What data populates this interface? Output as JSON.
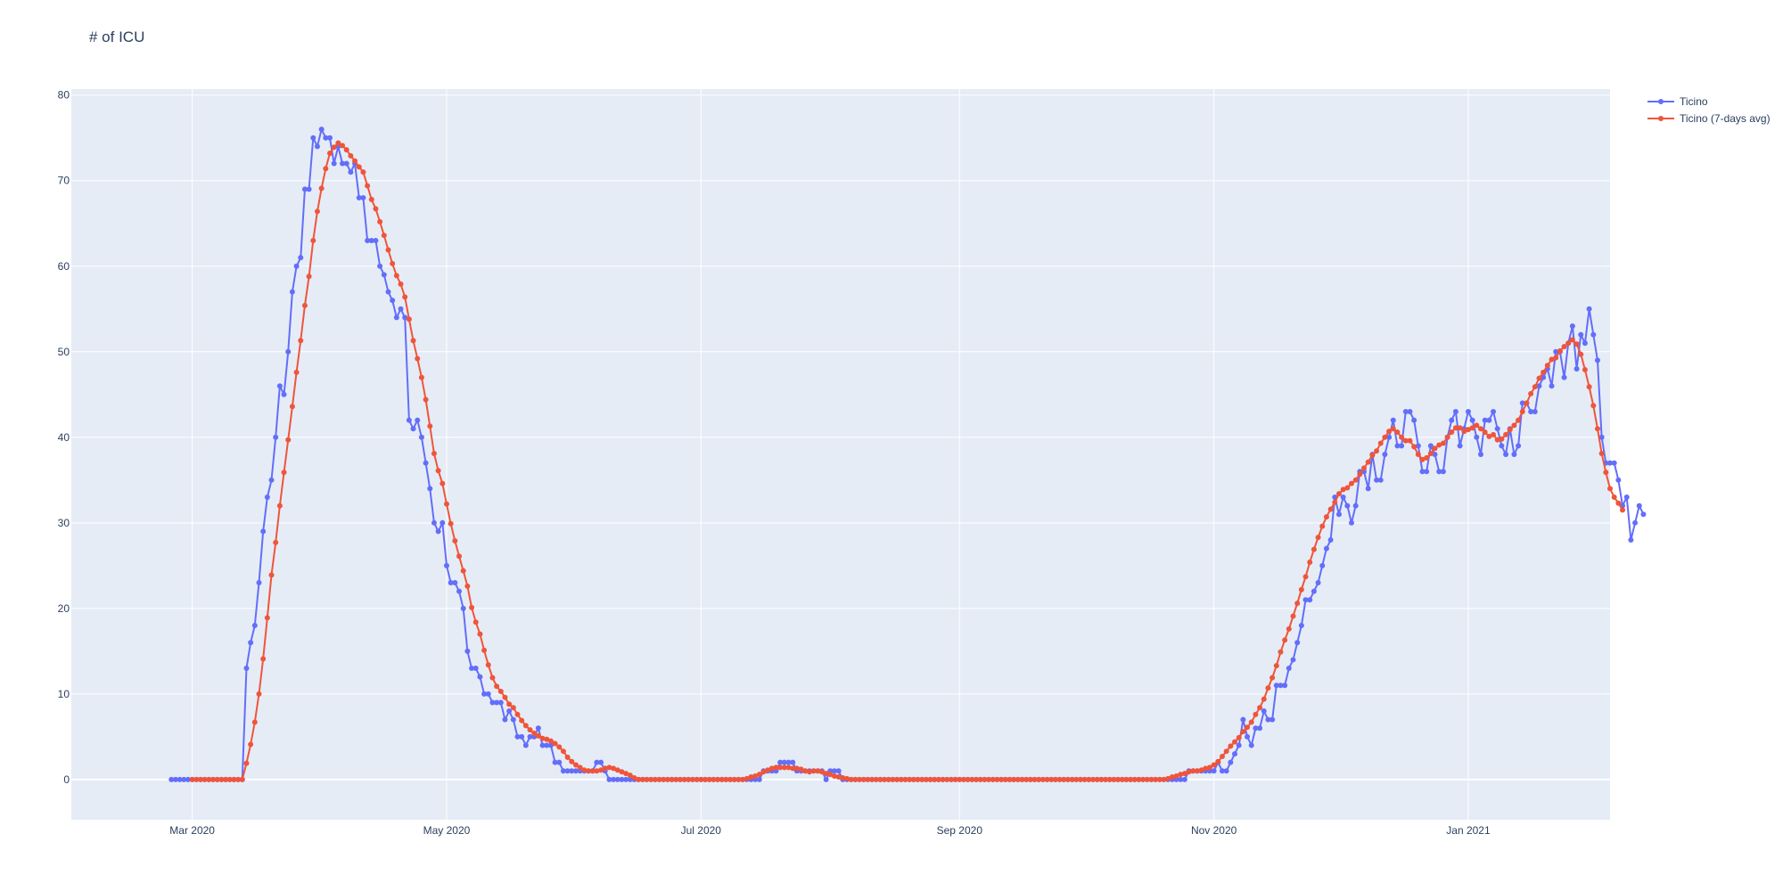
{
  "colors": {
    "background": "#ffffff",
    "plot_background": "#e5ecf6",
    "grid": "#ffffff",
    "axis_text": "#2a3f5f"
  },
  "chart_data": {
    "type": "line",
    "title": "# of ICU",
    "xlabel": "",
    "ylabel": "",
    "ylim": [
      -4.7,
      80.7
    ],
    "xlim": [
      "2020-02-01",
      "2021-02-04"
    ],
    "x_ticks": [
      {
        "date": "2020-03-01",
        "label": "Mar 2020"
      },
      {
        "date": "2020-05-01",
        "label": "May 2020"
      },
      {
        "date": "2020-07-01",
        "label": "Jul 2020"
      },
      {
        "date": "2020-09-01",
        "label": "Sep 2020"
      },
      {
        "date": "2020-11-01",
        "label": "Nov 2020"
      },
      {
        "date": "2021-01-01",
        "label": "Jan 2021"
      }
    ],
    "y_ticks": [
      0,
      10,
      20,
      30,
      40,
      50,
      60,
      70,
      80
    ],
    "grid": true,
    "legend": "top-right, outside plot",
    "series": [
      {
        "name": "Ticino",
        "color": "#636efa",
        "mode": "lines+markers",
        "start_date": "2020-02-25",
        "values": [
          0,
          0,
          0,
          0,
          0,
          0,
          0,
          0,
          0,
          0,
          0,
          0,
          0,
          0,
          0,
          0,
          0,
          0,
          13,
          16,
          18,
          23,
          29,
          33,
          35,
          40,
          46,
          45,
          50,
          57,
          60,
          61,
          69,
          69,
          75,
          74,
          76,
          75,
          75,
          72,
          74,
          72,
          72,
          71,
          72,
          68,
          68,
          63,
          63,
          63,
          60,
          59,
          57,
          56,
          54,
          55,
          54,
          42,
          41,
          42,
          40,
          37,
          34,
          30,
          29,
          30,
          25,
          23,
          23,
          22,
          20,
          15,
          13,
          13,
          12,
          10,
          10,
          9,
          9,
          9,
          7,
          8,
          7,
          5,
          5,
          4,
          5,
          5,
          6,
          4,
          4,
          4,
          2,
          2,
          1,
          1,
          1,
          1,
          1,
          1,
          1,
          1,
          2,
          2,
          1,
          0,
          0,
          0,
          0,
          0,
          0,
          0,
          0,
          0,
          0,
          0,
          0,
          0,
          0,
          0,
          0,
          0,
          0,
          0,
          0,
          0,
          0,
          0,
          0,
          0,
          0,
          0,
          0,
          0,
          0,
          0,
          0,
          0,
          0,
          0,
          0,
          0,
          1,
          1,
          1,
          1,
          2,
          2,
          2,
          2,
          1,
          1,
          1,
          1,
          1,
          1,
          1,
          0,
          1,
          1,
          1,
          0,
          0,
          0,
          0,
          0,
          0,
          0,
          0,
          0,
          0,
          0,
          0,
          0,
          0,
          0,
          0,
          0,
          0,
          0,
          0,
          0,
          0,
          0,
          0,
          0,
          0,
          0,
          0,
          0,
          0,
          0,
          0,
          0,
          0,
          0,
          0,
          0,
          0,
          0,
          0,
          0,
          0,
          0,
          0,
          0,
          0,
          0,
          0,
          0,
          0,
          0,
          0,
          0,
          0,
          0,
          0,
          0,
          0,
          0,
          0,
          0,
          0,
          0,
          0,
          0,
          0,
          0,
          0,
          0,
          0,
          0,
          0,
          0,
          0,
          0,
          0,
          0,
          0,
          0,
          0,
          0,
          0,
          0,
          1,
          1,
          1,
          1,
          1,
          1,
          1,
          2,
          1,
          1,
          2,
          3,
          4,
          7,
          5,
          4,
          6,
          6,
          8,
          7,
          7,
          11,
          11,
          11,
          13,
          14,
          16,
          18,
          21,
          21,
          22,
          23,
          25,
          27,
          28,
          33,
          31,
          33,
          32,
          30,
          32,
          36,
          36,
          34,
          38,
          35,
          35,
          38,
          40,
          42,
          39,
          39,
          43,
          43,
          42,
          39,
          36,
          36,
          39,
          38,
          36,
          36,
          40,
          42,
          43,
          39,
          41,
          43,
          42,
          40,
          38,
          42,
          42,
          43,
          41,
          39,
          38,
          41,
          38,
          39,
          44,
          44,
          43,
          43,
          46,
          47,
          48,
          46,
          50,
          50,
          47,
          51,
          53,
          48,
          52,
          51,
          55,
          52,
          49,
          40,
          37,
          37,
          37,
          35,
          32,
          33,
          28,
          30,
          32,
          31
        ]
      },
      {
        "name": "Ticino (7-days avg)",
        "color": "#ef553b",
        "mode": "lines+markers",
        "start_date": "2020-03-01",
        "values": [
          0,
          0,
          0,
          0,
          0,
          0,
          0,
          0,
          0,
          0,
          0,
          0,
          0,
          1.9,
          4.1,
          6.7,
          10.0,
          14.1,
          18.9,
          23.9,
          27.7,
          32.0,
          35.9,
          39.7,
          43.6,
          47.6,
          51.3,
          55.4,
          58.8,
          63.0,
          66.4,
          69.1,
          71.4,
          73.2,
          73.9,
          74.4,
          74.1,
          73.6,
          72.9,
          72.3,
          71.6,
          71.0,
          69.4,
          67.8,
          66.7,
          65.2,
          63.6,
          61.9,
          60.3,
          58.9,
          57.9,
          56.4,
          53.8,
          51.3,
          49.2,
          47.0,
          44.4,
          41.3,
          38.1,
          36.1,
          34.6,
          32.2,
          29.9,
          27.9,
          26.1,
          24.4,
          22.6,
          20.1,
          18.4,
          17.0,
          15.1,
          13.4,
          11.9,
          10.9,
          10.3,
          9.6,
          8.8,
          8.4,
          7.6,
          6.9,
          6.3,
          5.8,
          5.4,
          5.1,
          4.8,
          4.7,
          4.5,
          4.2,
          3.8,
          3.3,
          2.6,
          2.1,
          1.7,
          1.4,
          1.1,
          1.0,
          1.0,
          1.0,
          1.1,
          1.3,
          1.4,
          1.3,
          1.1,
          0.9,
          0.7,
          0.5,
          0.2,
          0,
          0,
          0,
          0,
          0,
          0,
          0,
          0,
          0,
          0,
          0,
          0,
          0,
          0,
          0,
          0,
          0,
          0,
          0,
          0,
          0,
          0,
          0,
          0,
          0,
          0,
          0.1,
          0.3,
          0.4,
          0.6,
          0.9,
          1.1,
          1.3,
          1.4,
          1.4,
          1.4,
          1.4,
          1.3,
          1.3,
          1.2,
          1.0,
          0.9,
          1.0,
          1.0,
          0.9,
          0.7,
          0.6,
          0.4,
          0.3,
          0.2,
          0.1,
          0,
          0,
          0,
          0,
          0,
          0,
          0,
          0,
          0,
          0,
          0,
          0,
          0,
          0,
          0,
          0,
          0,
          0,
          0,
          0,
          0,
          0,
          0,
          0,
          0,
          0,
          0,
          0,
          0,
          0,
          0,
          0,
          0,
          0,
          0,
          0,
          0,
          0,
          0,
          0,
          0,
          0,
          0,
          0,
          0,
          0,
          0,
          0,
          0,
          0,
          0,
          0,
          0,
          0,
          0,
          0,
          0,
          0,
          0,
          0,
          0,
          0,
          0,
          0,
          0,
          0,
          0,
          0,
          0,
          0,
          0,
          0,
          0,
          0,
          0,
          0,
          0.1,
          0.3,
          0.4,
          0.6,
          0.7,
          0.9,
          1.0,
          1.0,
          1.1,
          1.3,
          1.4,
          1.7,
          2.1,
          2.7,
          3.3,
          3.9,
          4.4,
          4.9,
          5.6,
          6.1,
          6.7,
          7.6,
          8.4,
          9.4,
          10.7,
          11.9,
          13.3,
          14.9,
          16.3,
          17.6,
          19.1,
          20.6,
          22.2,
          23.7,
          25.4,
          26.9,
          28.3,
          29.6,
          30.7,
          31.6,
          32.4,
          33.4,
          33.9,
          34.1,
          34.6,
          35.0,
          35.7,
          36.4,
          37.1,
          37.9,
          38.4,
          39.3,
          40.0,
          40.7,
          41.0,
          40.6,
          40.0,
          39.6,
          39.6,
          38.9,
          38.0,
          37.4,
          37.6,
          38.1,
          38.7,
          39.1,
          39.3,
          40.0,
          40.6,
          41.1,
          41.1,
          40.7,
          40.9,
          41.1,
          41.4,
          41.0,
          40.6,
          40.1,
          40.3,
          39.7,
          39.8,
          40.3,
          40.9,
          41.4,
          42.0,
          43.0,
          44.0,
          45.1,
          45.9,
          46.9,
          47.6,
          48.4,
          49.1,
          49.3,
          50.1,
          50.6,
          51.0,
          51.4,
          50.9,
          49.7,
          47.9,
          45.9,
          43.7,
          41.0,
          38.1,
          35.9,
          34.0,
          33.0,
          32.3,
          31.5
        ]
      }
    ]
  }
}
